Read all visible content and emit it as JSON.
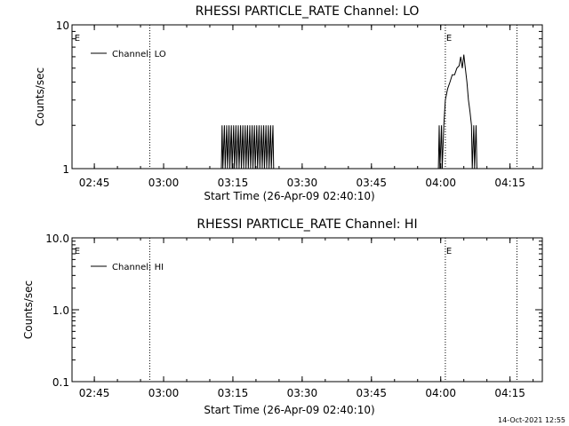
{
  "timestamp": "14-Oct-2021 12:55",
  "chart_data": [
    {
      "type": "line",
      "title": "RHESSI PARTICLE_RATE Channel: LO",
      "xlabel": "Start Time (26-Apr-09 02:40:10)",
      "ylabel": "Counts/sec",
      "x_ticks": [
        "02:45",
        "03:00",
        "03:15",
        "03:30",
        "03:45",
        "04:00",
        "04:15"
      ],
      "y_ticks": [
        "1",
        "10"
      ],
      "y_scale": "log",
      "ylim": [
        1,
        10
      ],
      "xlim": [
        "02:40:10",
        "04:22:00"
      ],
      "legend": {
        "entries": [
          "Channel: LO"
        ],
        "position": "top-left"
      },
      "vertical_markers": [
        {
          "time": "02:40:30",
          "label": "E"
        },
        {
          "time": "02:57:00",
          "label": ""
        },
        {
          "time": "04:01:00",
          "label": "E"
        },
        {
          "time": "04:16:30",
          "label": ""
        }
      ],
      "series": [
        {
          "points": [
            [
              "03:12:30",
              1
            ],
            [
              "03:12:40",
              2
            ],
            [
              "03:12:50",
              1
            ],
            [
              "03:13:10",
              2
            ],
            [
              "03:13:20",
              1
            ],
            [
              "03:13:40",
              2
            ],
            [
              "03:13:50",
              1
            ],
            [
              "03:14:10",
              2
            ],
            [
              "03:14:20",
              1
            ],
            [
              "03:14:40",
              2
            ],
            [
              "03:14:50",
              1
            ],
            [
              "03:15:10",
              2
            ],
            [
              "03:15:20",
              1
            ],
            [
              "03:15:40",
              2
            ],
            [
              "03:15:50",
              1
            ],
            [
              "03:16:10",
              2
            ],
            [
              "03:16:20",
              1
            ],
            [
              "03:16:40",
              2
            ],
            [
              "03:16:50",
              1
            ],
            [
              "03:17:10",
              2
            ],
            [
              "03:17:20",
              1
            ],
            [
              "03:17:40",
              2
            ],
            [
              "03:17:50",
              1
            ],
            [
              "03:18:10",
              2
            ],
            [
              "03:18:20",
              1
            ],
            [
              "03:18:40",
              2
            ],
            [
              "03:18:50",
              1
            ],
            [
              "03:19:10",
              2
            ],
            [
              "03:19:20",
              1
            ],
            [
              "03:19:40",
              2
            ],
            [
              "03:19:50",
              1
            ],
            [
              "03:20:10",
              2
            ],
            [
              "03:20:20",
              1
            ],
            [
              "03:20:40",
              2
            ],
            [
              "03:20:50",
              1
            ],
            [
              "03:21:10",
              2
            ],
            [
              "03:21:20",
              1
            ],
            [
              "03:21:40",
              2
            ],
            [
              "03:21:50",
              1
            ],
            [
              "03:22:10",
              2
            ],
            [
              "03:22:20",
              1
            ],
            [
              "03:22:40",
              2
            ],
            [
              "03:22:50",
              1
            ],
            [
              "03:23:10",
              2
            ],
            [
              "03:23:20",
              1
            ],
            [
              "03:23:40",
              2
            ],
            [
              "03:23:50",
              1
            ],
            [
              "03:59:30",
              1
            ],
            [
              "03:59:40",
              2
            ],
            [
              "03:59:50",
              1
            ],
            [
              "04:00:10",
              2
            ],
            [
              "04:00:20",
              1
            ],
            [
              "04:00:40",
              2
            ],
            [
              "04:01:00",
              3
            ],
            [
              "04:01:30",
              3.6
            ],
            [
              "04:02:00",
              4
            ],
            [
              "04:02:30",
              4.5
            ],
            [
              "04:03:00",
              4.5
            ],
            [
              "04:03:30",
              5
            ],
            [
              "04:04:00",
              5.2
            ],
            [
              "04:04:20",
              6
            ],
            [
              "04:04:40",
              5
            ],
            [
              "04:05:00",
              6.2
            ],
            [
              "04:05:20",
              5
            ],
            [
              "04:05:40",
              4
            ],
            [
              "04:06:00",
              3
            ],
            [
              "04:06:20",
              2.5
            ],
            [
              "04:06:40",
              2
            ],
            [
              "04:06:50",
              1
            ],
            [
              "04:07:10",
              2
            ],
            [
              "04:07:20",
              1
            ],
            [
              "04:07:40",
              2
            ],
            [
              "04:07:50",
              1
            ]
          ]
        }
      ]
    },
    {
      "type": "line",
      "title": "RHESSI PARTICLE_RATE Channel: HI",
      "xlabel": "Start Time (26-Apr-09 02:40:10)",
      "ylabel": "Counts/sec",
      "x_ticks": [
        "02:45",
        "03:00",
        "03:15",
        "03:30",
        "03:45",
        "04:00",
        "04:15"
      ],
      "y_ticks": [
        "0.1",
        "1.0",
        "10.0"
      ],
      "y_scale": "log",
      "ylim": [
        0.1,
        10
      ],
      "xlim": [
        "02:40:10",
        "04:22:00"
      ],
      "legend": {
        "entries": [
          "Channel: HI"
        ],
        "position": "top-left"
      },
      "vertical_markers": [
        {
          "time": "02:40:30",
          "label": "E"
        },
        {
          "time": "02:57:00",
          "label": ""
        },
        {
          "time": "04:01:00",
          "label": "E"
        },
        {
          "time": "04:16:30",
          "label": ""
        }
      ],
      "series": [
        {
          "points": []
        }
      ]
    }
  ]
}
